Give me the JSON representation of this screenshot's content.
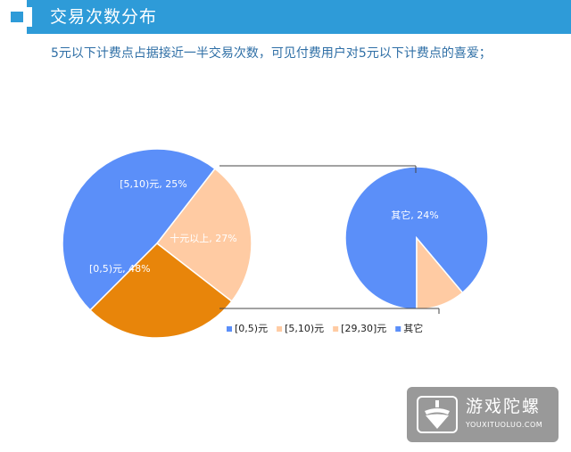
{
  "header": {
    "title": "交易次数分布"
  },
  "subtitle": "5元以下计费点占据接近一半交易次数，可见付费用户对5元以下计费点的喜爱；",
  "colors": {
    "header": "#2e9bd8",
    "blue": "#5b8ff9",
    "peach": "#ffcba3",
    "orange": "#e8850a"
  },
  "chart_data": {
    "type": "pie",
    "title": "",
    "main_pie": [
      {
        "category": "[0,5)元",
        "label": "[0,5)元, 48%",
        "value": 48,
        "color": "#5b8ff9"
      },
      {
        "category": "[5,10)元",
        "label": "[5,10)元, 25%",
        "value": 25,
        "color": "#ffcba3"
      },
      {
        "category": "十元以上",
        "label": "十元以上, 27%",
        "value": 27,
        "color": "#e8850a"
      }
    ],
    "secondary_pie": [
      {
        "category": "其它",
        "label": "其它, 24%",
        "value": 24,
        "color": "#5b8ff9"
      },
      {
        "category": "[29,30]元",
        "label": "",
        "value": 3,
        "color": "#ffcba3"
      }
    ],
    "legend": {
      "position": "bottom",
      "entries": [
        {
          "label": "[0,5)元",
          "color": "#5b8ff9"
        },
        {
          "label": "[5,10)元",
          "color": "#ffcba3"
        },
        {
          "label": "[29,30]元",
          "color": "#ffcba3"
        },
        {
          "label": "其它",
          "color": "#5b8ff9"
        }
      ]
    }
  },
  "watermark": {
    "name": "游戏陀螺",
    "url": "YOUXITUOLUO.COM"
  }
}
